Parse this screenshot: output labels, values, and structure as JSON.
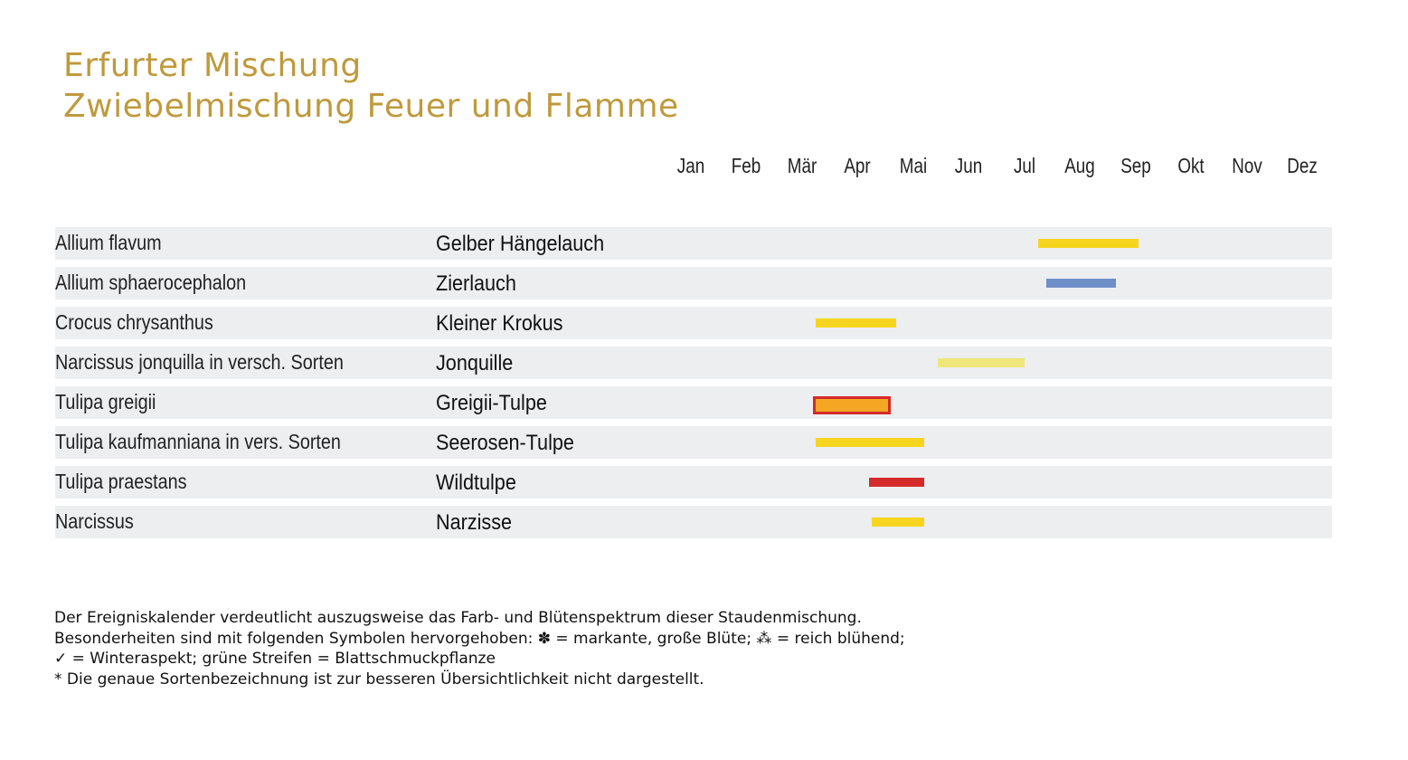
{
  "title": {
    "line1": "Erfurter Mischung",
    "line2": "Zwiebelmischung Feuer und Flamme"
  },
  "chart_data": {
    "type": "bar",
    "months": [
      "Jan",
      "Feb",
      "Mär",
      "Apr",
      "Mai",
      "Jun",
      "Jul",
      "Aug",
      "Sep",
      "Okt",
      "Nov",
      "Dez"
    ],
    "rows": [
      {
        "latin": "Allium flavum",
        "german": "Gelber Hängelauch",
        "start": 6.75,
        "end": 8.55,
        "color": "#f7d51e",
        "border": ""
      },
      {
        "latin": "Allium sphaerocephalon",
        "german": "Zierlauch",
        "start": 6.9,
        "end": 8.15,
        "color": "#6f8fc8",
        "border": ""
      },
      {
        "latin": "Crocus chrysanthus",
        "german": "Kleiner Krokus",
        "start": 2.75,
        "end": 4.2,
        "color": "#f7d51e",
        "border": ""
      },
      {
        "latin": "Narcissus jonquilla in versch. Sorten",
        "german": "Jonquille",
        "start": 4.95,
        "end": 6.5,
        "color": "#efe77a",
        "border": ""
      },
      {
        "latin": "Tulipa greigii",
        "german": "Greigii-Tulpe",
        "start": 2.7,
        "end": 4.1,
        "color": "#f5a623",
        "border": "#d42a2a"
      },
      {
        "latin": "Tulipa kaufmanniana in vers. Sorten",
        "german": "Seerosen-Tulpe",
        "start": 2.75,
        "end": 4.7,
        "color": "#f7d51e",
        "border": ""
      },
      {
        "latin": "Tulipa praestans",
        "german": "Wildtulpe",
        "start": 3.7,
        "end": 4.7,
        "color": "#d42a2a",
        "border": ""
      },
      {
        "latin": "Narcissus",
        "german": "Narzisse",
        "start": 3.75,
        "end": 4.7,
        "color": "#f7d51e",
        "border": ""
      }
    ]
  },
  "footnote": {
    "line1": "Der Ereigniskalender verdeutlicht auszugsweise das Farb- und Blütenspektrum dieser Staudenmischung.",
    "line2": "Besonderheiten sind mit folgenden Symbolen hervorgehoben: ✽ = markante, große Blüte; ⁂ = reich blühend;",
    "line3": "✓ = Winteraspekt; grüne Streifen = Blattschmuckpflanze",
    "line4": "* Die genaue Sortenbezeichnung ist zur besseren Übersichtlichkeit nicht dargestellt."
  }
}
